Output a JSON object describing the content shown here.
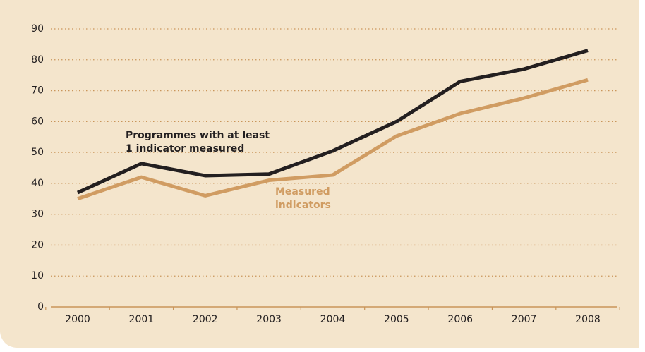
{
  "chart_data": {
    "type": "line",
    "categories": [
      "2000",
      "2001",
      "2002",
      "2003",
      "2004",
      "2005",
      "2006",
      "2007",
      "2008"
    ],
    "series": [
      {
        "name": "Programmes with at least 1 indicator measured",
        "color": "#231f20",
        "values": [
          37,
          46.4,
          42.5,
          43,
          50.5,
          60,
          73,
          77,
          83
        ]
      },
      {
        "name": "Measured indicators",
        "color": "#d09c62",
        "values": [
          35,
          42,
          36,
          41,
          42.7,
          55.3,
          62.6,
          67.6,
          73.5
        ]
      }
    ],
    "ylim": [
      0,
      90
    ],
    "yticks": [
      0,
      10,
      20,
      30,
      40,
      50,
      60,
      70,
      80,
      90
    ],
    "grid": true
  }
}
